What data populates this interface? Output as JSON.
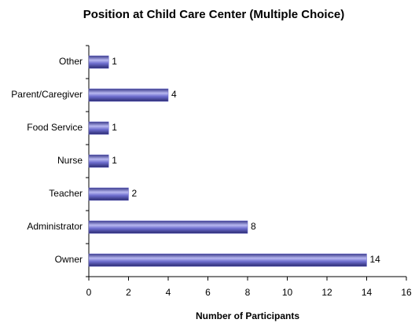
{
  "chart_data": {
    "type": "barh",
    "title": "Position at Child Care Center (Multiple Choice)",
    "x_label": "Number of Participants",
    "categories": [
      "Other",
      "Parent/Caregiver",
      "Food Service",
      "Nurse",
      "Teacher",
      "Administrator",
      "Owner"
    ],
    "values": [
      1,
      4,
      1,
      1,
      2,
      8,
      14
    ],
    "color": "#6666cc",
    "xlim": [
      0,
      16
    ],
    "xticks": [
      0,
      2,
      4,
      6,
      8,
      10,
      12,
      14,
      16
    ],
    "grid": false
  }
}
